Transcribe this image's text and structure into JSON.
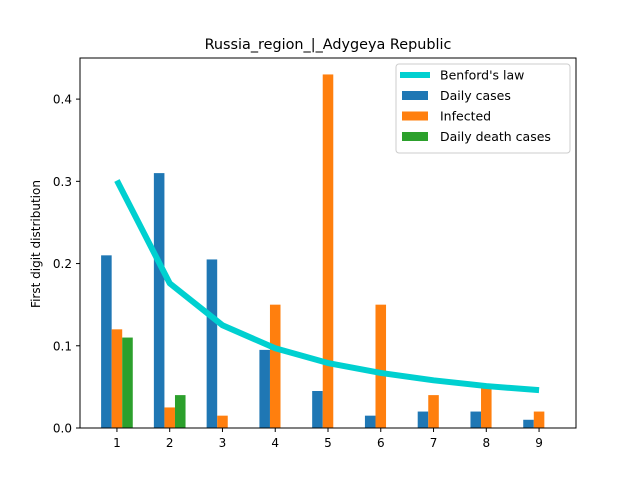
{
  "chart_data": {
    "type": "bar",
    "title": "Russia_region_|_Adygeya Republic",
    "xlabel": "",
    "ylabel": "First digit distribution",
    "categories": [
      "1",
      "2",
      "3",
      "4",
      "5",
      "6",
      "7",
      "8",
      "9"
    ],
    "ylim": [
      0,
      0.45
    ],
    "yticks": [
      "0.0",
      "0.1",
      "0.2",
      "0.3",
      "0.4"
    ],
    "legend_position": "top-right",
    "grid": false,
    "series": [
      {
        "name": "Daily cases",
        "type": "bar",
        "color": "#1f77b4",
        "values": [
          0.21,
          0.31,
          0.205,
          0.095,
          0.045,
          0.015,
          0.02,
          0.02,
          0.01
        ]
      },
      {
        "name": "Infected",
        "type": "bar",
        "color": "#ff7f0e",
        "values": [
          0.12,
          0.025,
          0.015,
          0.15,
          0.43,
          0.15,
          0.04,
          0.05,
          0.02
        ]
      },
      {
        "name": "Daily death cases",
        "type": "bar",
        "color": "#2ca02c",
        "values": [
          0.11,
          0.04,
          0,
          0,
          0,
          0,
          0,
          0,
          0
        ]
      },
      {
        "name": "Benford's law",
        "type": "line",
        "color": "#00d0d0",
        "values": [
          0.301,
          0.176,
          0.125,
          0.097,
          0.079,
          0.067,
          0.058,
          0.051,
          0.046
        ]
      }
    ]
  }
}
